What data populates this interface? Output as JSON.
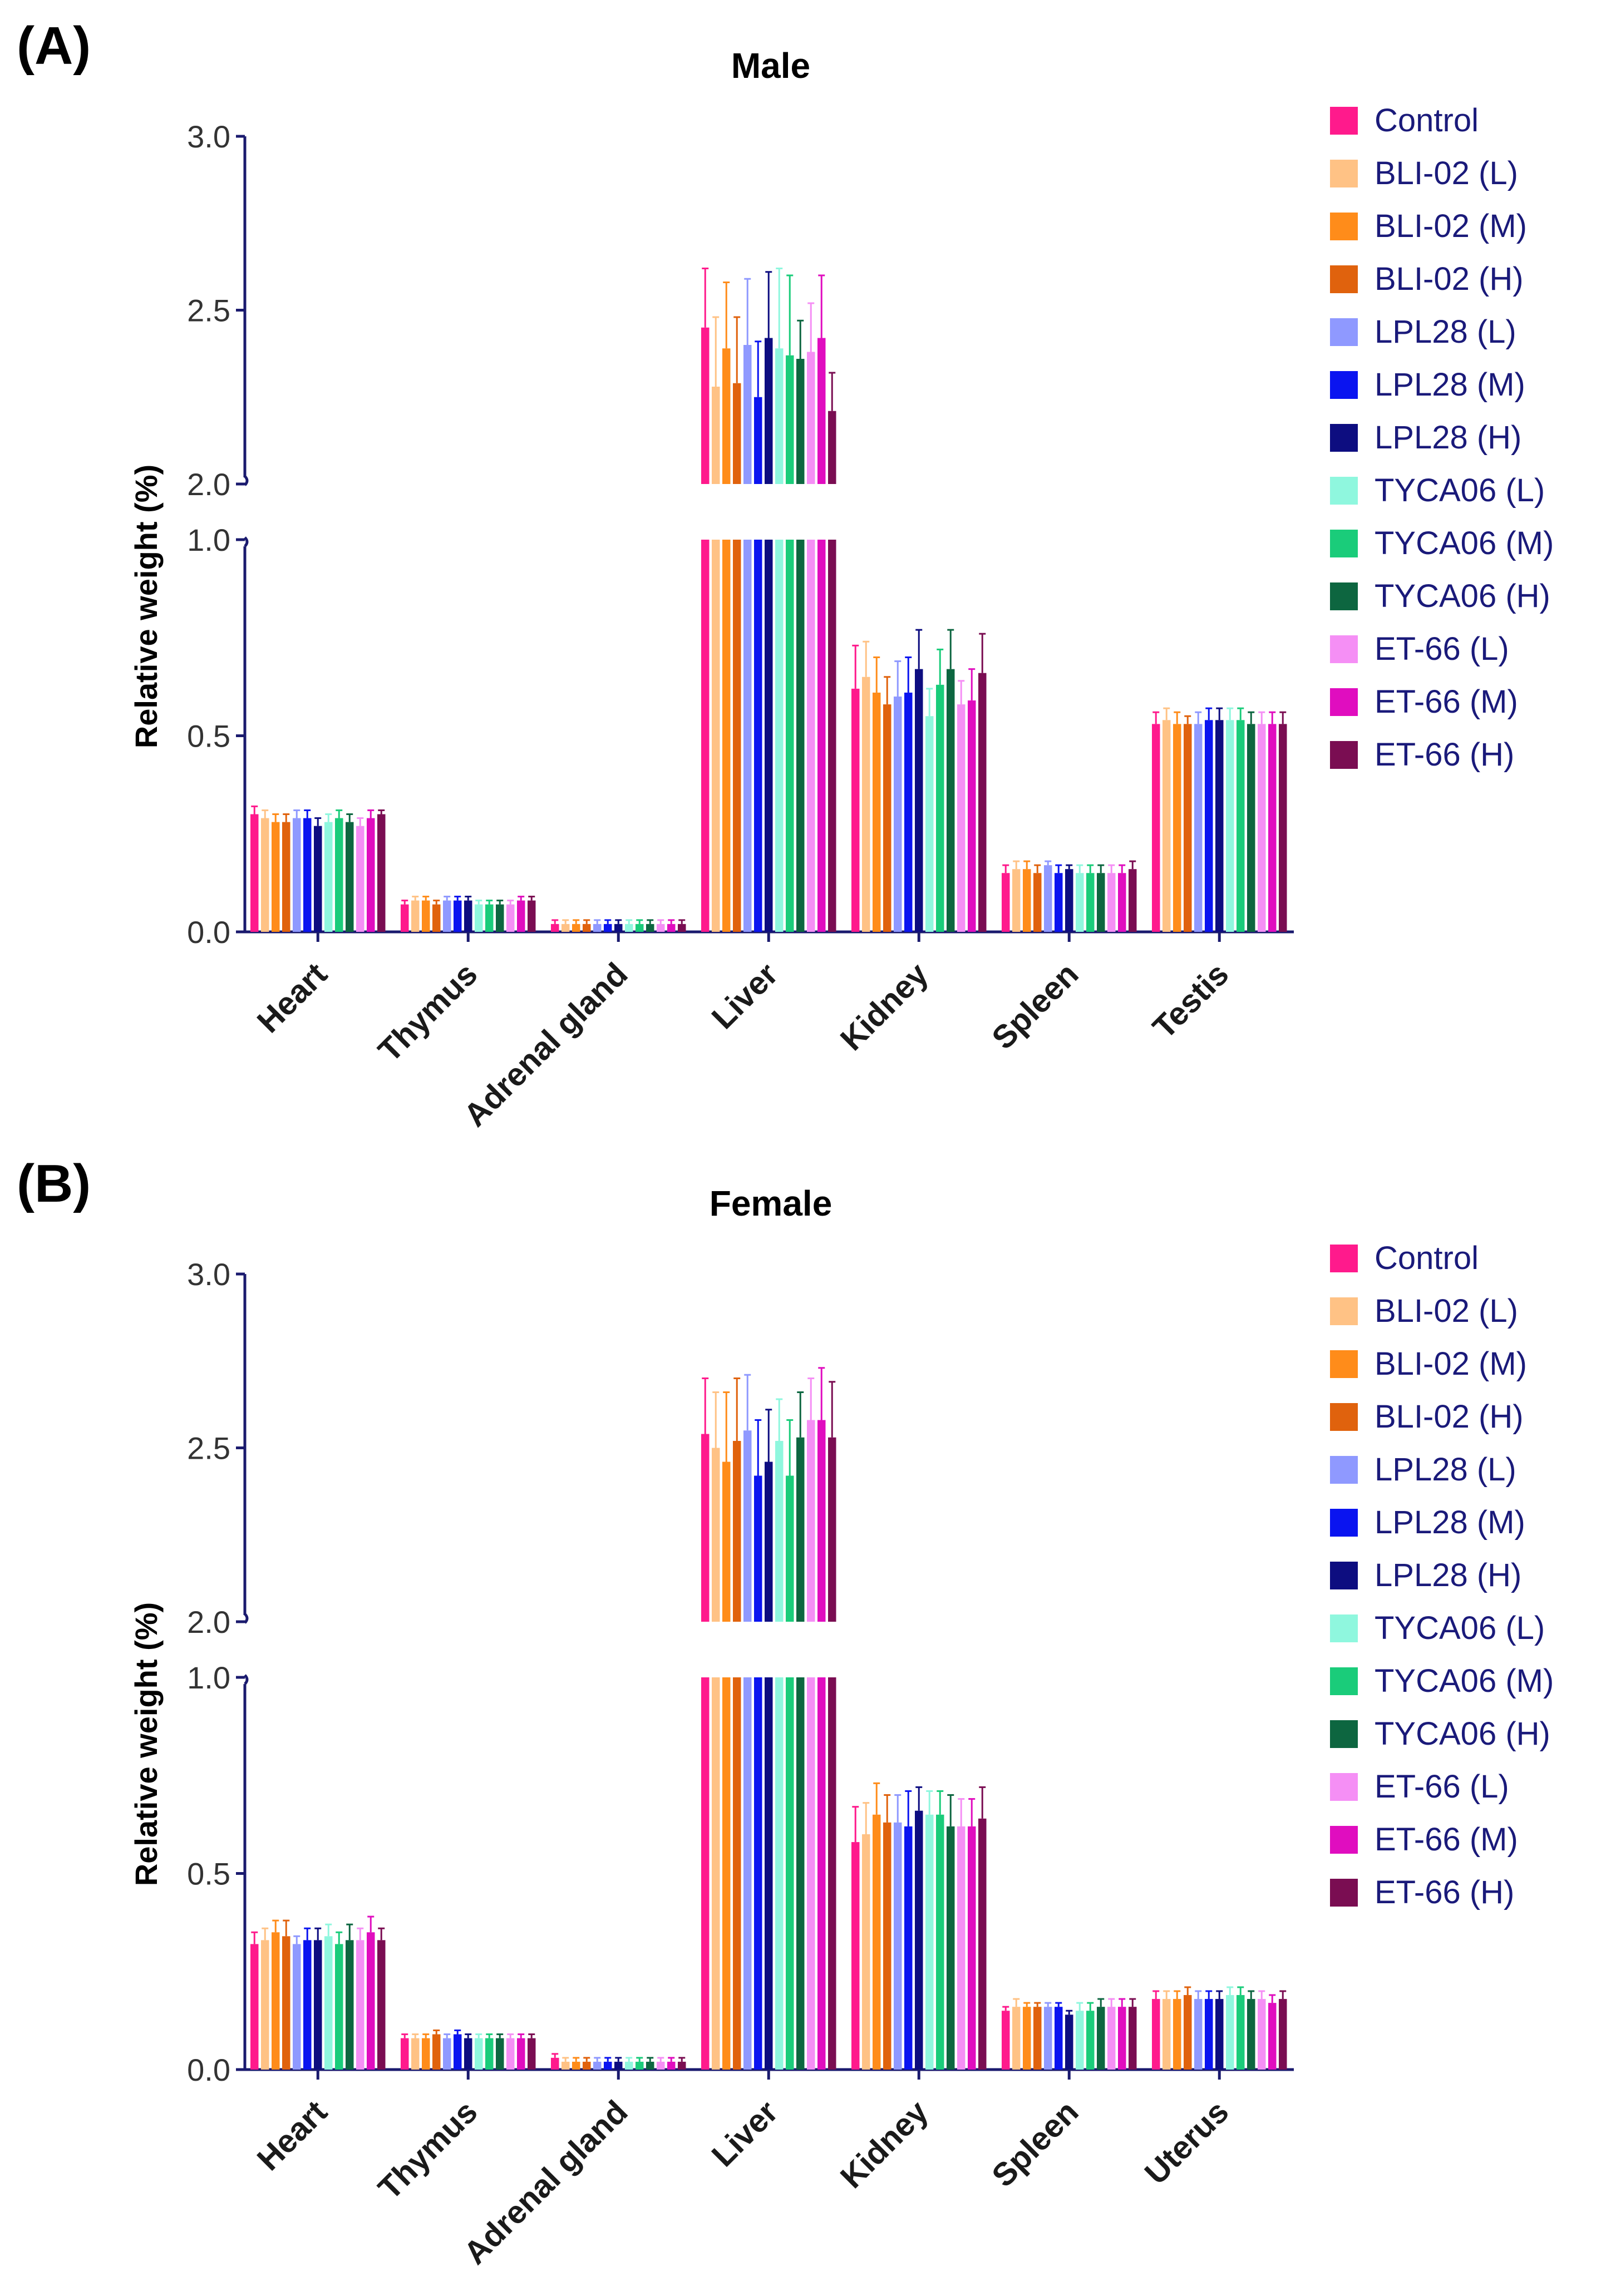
{
  "series_names": [
    "Control",
    "BLI-02 (L)",
    "BLI-02 (M)",
    "BLI-02 (H)",
    "LPL28 (L)",
    "LPL28 (M)",
    "LPL28 (H)",
    "TYCA06 (L)",
    "TYCA06 (M)",
    "TYCA06 (H)",
    "ET-66 (L)",
    "ET-66 (M)",
    "ET-66 (H)"
  ],
  "series_colors": [
    "#ff1a8c",
    "#ffc285",
    "#ff8c1a",
    "#e0620d",
    "#8f99ff",
    "#0a14f0",
    "#0d0d80",
    "#8ff7de",
    "#1acc7a",
    "#0d6640",
    "#f58ff5",
    "#e00dbf",
    "#7a0d52"
  ],
  "axis_color": "#1a1a6e",
  "chart_data": [
    {
      "type": "bar",
      "panel_label": "(A)",
      "title": "Male",
      "ylabel": "Relative weight (%)",
      "xlabel": "",
      "ylim": [
        0,
        3.0
      ],
      "axis_break": [
        1.0,
        2.0
      ],
      "yticks_lower": [
        "0.0",
        "0.5",
        "1.0"
      ],
      "yticks_upper": [
        "2.0",
        "2.5",
        "3.0"
      ],
      "categories": [
        "Heart",
        "Thymus",
        "Adrenal gland",
        "Liver",
        "Kidney",
        "Spleen",
        "Testis"
      ],
      "series": [
        {
          "name": "Control",
          "values": [
            0.3,
            0.07,
            0.02,
            2.45,
            0.62,
            0.15,
            0.53
          ],
          "errors": [
            0.02,
            0.01,
            0.01,
            0.17,
            0.11,
            0.02,
            0.03
          ]
        },
        {
          "name": "BLI-02 (L)",
          "values": [
            0.29,
            0.08,
            0.02,
            2.28,
            0.65,
            0.16,
            0.54
          ],
          "errors": [
            0.02,
            0.01,
            0.01,
            0.2,
            0.09,
            0.02,
            0.03
          ]
        },
        {
          "name": "BLI-02 (M)",
          "values": [
            0.28,
            0.08,
            0.02,
            2.39,
            0.61,
            0.16,
            0.53
          ],
          "errors": [
            0.02,
            0.01,
            0.01,
            0.19,
            0.09,
            0.02,
            0.03
          ]
        },
        {
          "name": "BLI-02 (H)",
          "values": [
            0.28,
            0.07,
            0.02,
            2.29,
            0.58,
            0.15,
            0.53
          ],
          "errors": [
            0.02,
            0.01,
            0.01,
            0.19,
            0.07,
            0.02,
            0.02
          ]
        },
        {
          "name": "LPL28 (L)",
          "values": [
            0.29,
            0.08,
            0.02,
            2.4,
            0.6,
            0.17,
            0.53
          ],
          "errors": [
            0.02,
            0.01,
            0.01,
            0.19,
            0.09,
            0.01,
            0.03
          ]
        },
        {
          "name": "LPL28 (M)",
          "values": [
            0.29,
            0.08,
            0.02,
            2.25,
            0.61,
            0.15,
            0.54
          ],
          "errors": [
            0.02,
            0.01,
            0.01,
            0.16,
            0.09,
            0.02,
            0.03
          ]
        },
        {
          "name": "LPL28 (H)",
          "values": [
            0.27,
            0.08,
            0.02,
            2.42,
            0.67,
            0.16,
            0.54
          ],
          "errors": [
            0.02,
            0.01,
            0.01,
            0.19,
            0.1,
            0.01,
            0.03
          ]
        },
        {
          "name": "TYCA06 (L)",
          "values": [
            0.28,
            0.07,
            0.02,
            2.39,
            0.55,
            0.15,
            0.54
          ],
          "errors": [
            0.02,
            0.01,
            0.01,
            0.23,
            0.07,
            0.02,
            0.03
          ]
        },
        {
          "name": "TYCA06 (M)",
          "values": [
            0.29,
            0.07,
            0.02,
            2.37,
            0.63,
            0.15,
            0.54
          ],
          "errors": [
            0.02,
            0.01,
            0.01,
            0.23,
            0.09,
            0.02,
            0.03
          ]
        },
        {
          "name": "TYCA06 (H)",
          "values": [
            0.28,
            0.07,
            0.02,
            2.36,
            0.67,
            0.15,
            0.53
          ],
          "errors": [
            0.02,
            0.01,
            0.01,
            0.11,
            0.1,
            0.02,
            0.03
          ]
        },
        {
          "name": "ET-66 (L)",
          "values": [
            0.27,
            0.07,
            0.02,
            2.38,
            0.58,
            0.15,
            0.53
          ],
          "errors": [
            0.02,
            0.01,
            0.01,
            0.14,
            0.06,
            0.02,
            0.03
          ]
        },
        {
          "name": "ET-66 (M)",
          "values": [
            0.29,
            0.08,
            0.02,
            2.42,
            0.59,
            0.15,
            0.53
          ],
          "errors": [
            0.02,
            0.01,
            0.01,
            0.18,
            0.08,
            0.02,
            0.03
          ]
        },
        {
          "name": "ET-66 (H)",
          "values": [
            0.3,
            0.08,
            0.02,
            2.21,
            0.66,
            0.16,
            0.53
          ],
          "errors": [
            0.01,
            0.01,
            0.01,
            0.11,
            0.1,
            0.02,
            0.03
          ]
        }
      ]
    },
    {
      "type": "bar",
      "panel_label": "(B)",
      "title": "Female",
      "ylabel": "Relative weight (%)",
      "xlabel": "",
      "ylim": [
        0,
        3.0
      ],
      "axis_break": [
        1.0,
        2.0
      ],
      "yticks_lower": [
        "0.0",
        "0.5",
        "1.0"
      ],
      "yticks_upper": [
        "2.0",
        "2.5",
        "3.0"
      ],
      "categories": [
        "Heart",
        "Thymus",
        "Adrenal gland",
        "Liver",
        "Kidney",
        "Spleen",
        "Uterus"
      ],
      "series": [
        {
          "name": "Control",
          "values": [
            0.32,
            0.08,
            0.03,
            2.54,
            0.58,
            0.15,
            0.18
          ],
          "errors": [
            0.03,
            0.01,
            0.01,
            0.16,
            0.09,
            0.01,
            0.02
          ]
        },
        {
          "name": "BLI-02 (L)",
          "values": [
            0.33,
            0.08,
            0.02,
            2.5,
            0.6,
            0.16,
            0.18
          ],
          "errors": [
            0.03,
            0.01,
            0.01,
            0.16,
            0.08,
            0.02,
            0.02
          ]
        },
        {
          "name": "BLI-02 (M)",
          "values": [
            0.35,
            0.08,
            0.02,
            2.46,
            0.65,
            0.16,
            0.18
          ],
          "errors": [
            0.03,
            0.01,
            0.01,
            0.2,
            0.08,
            0.01,
            0.02
          ]
        },
        {
          "name": "BLI-02 (H)",
          "values": [
            0.34,
            0.09,
            0.02,
            2.52,
            0.63,
            0.16,
            0.19
          ],
          "errors": [
            0.04,
            0.01,
            0.01,
            0.18,
            0.07,
            0.01,
            0.02
          ]
        },
        {
          "name": "LPL28 (L)",
          "values": [
            0.32,
            0.08,
            0.02,
            2.55,
            0.63,
            0.16,
            0.18
          ],
          "errors": [
            0.02,
            0.01,
            0.01,
            0.16,
            0.07,
            0.01,
            0.02
          ]
        },
        {
          "name": "LPL28 (M)",
          "values": [
            0.33,
            0.09,
            0.02,
            2.42,
            0.62,
            0.16,
            0.18
          ],
          "errors": [
            0.03,
            0.01,
            0.01,
            0.16,
            0.09,
            0.01,
            0.02
          ]
        },
        {
          "name": "LPL28 (H)",
          "values": [
            0.33,
            0.08,
            0.02,
            2.46,
            0.66,
            0.14,
            0.18
          ],
          "errors": [
            0.03,
            0.01,
            0.01,
            0.15,
            0.06,
            0.01,
            0.02
          ]
        },
        {
          "name": "TYCA06 (L)",
          "values": [
            0.34,
            0.08,
            0.02,
            2.52,
            0.65,
            0.15,
            0.19
          ],
          "errors": [
            0.03,
            0.01,
            0.01,
            0.12,
            0.06,
            0.02,
            0.02
          ]
        },
        {
          "name": "TYCA06 (M)",
          "values": [
            0.32,
            0.08,
            0.02,
            2.42,
            0.65,
            0.15,
            0.19
          ],
          "errors": [
            0.03,
            0.01,
            0.01,
            0.16,
            0.06,
            0.02,
            0.02
          ]
        },
        {
          "name": "TYCA06 (H)",
          "values": [
            0.33,
            0.08,
            0.02,
            2.53,
            0.62,
            0.16,
            0.18
          ],
          "errors": [
            0.04,
            0.01,
            0.01,
            0.13,
            0.08,
            0.02,
            0.02
          ]
        },
        {
          "name": "ET-66 (L)",
          "values": [
            0.33,
            0.08,
            0.02,
            2.58,
            0.62,
            0.16,
            0.18
          ],
          "errors": [
            0.03,
            0.01,
            0.01,
            0.12,
            0.07,
            0.02,
            0.02
          ]
        },
        {
          "name": "ET-66 (M)",
          "values": [
            0.35,
            0.08,
            0.02,
            2.58,
            0.62,
            0.16,
            0.17
          ],
          "errors": [
            0.04,
            0.01,
            0.01,
            0.15,
            0.07,
            0.02,
            0.02
          ]
        },
        {
          "name": "ET-66 (H)",
          "values": [
            0.33,
            0.08,
            0.02,
            2.53,
            0.64,
            0.16,
            0.18
          ],
          "errors": [
            0.03,
            0.01,
            0.01,
            0.16,
            0.08,
            0.02,
            0.02
          ]
        }
      ]
    }
  ]
}
